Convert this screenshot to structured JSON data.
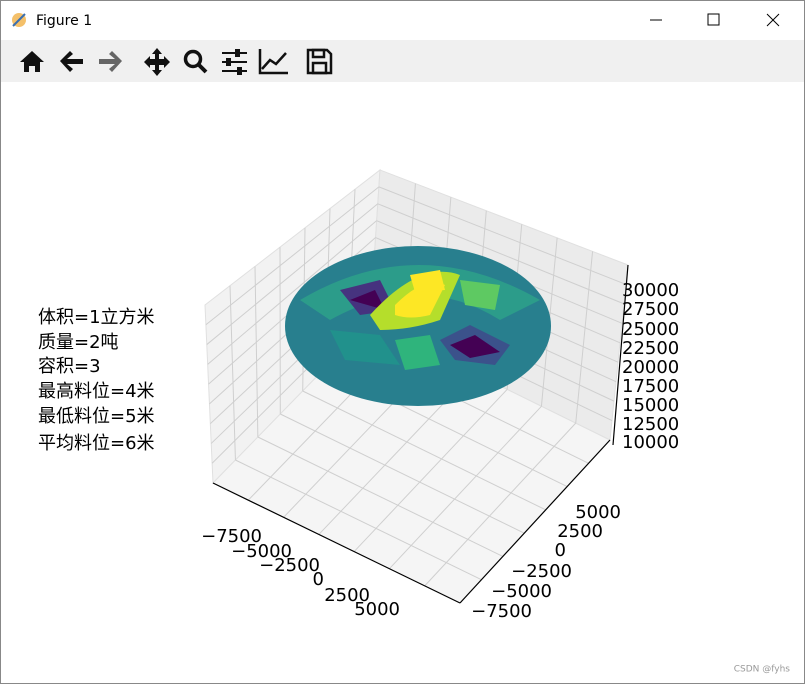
{
  "window": {
    "title": "Figure 1"
  },
  "annotations": [
    "体积=1立方米",
    "质量=2吨",
    "容积=3",
    "最高料位=4米",
    "最低料位=5米",
    "平均料位=6米"
  ],
  "axes": {
    "x_ticks": [
      "−7500",
      "−5000",
      "−2500",
      "0",
      "2500",
      "5000"
    ],
    "y_ticks": [
      "5000",
      "2500",
      "0",
      "−2500",
      "−5000",
      "−7500"
    ],
    "z_ticks": [
      "30000",
      "27500",
      "25000",
      "22500",
      "20000",
      "17500",
      "15000",
      "12500",
      "10000"
    ]
  },
  "watermark": "CSDN @fyhs"
}
